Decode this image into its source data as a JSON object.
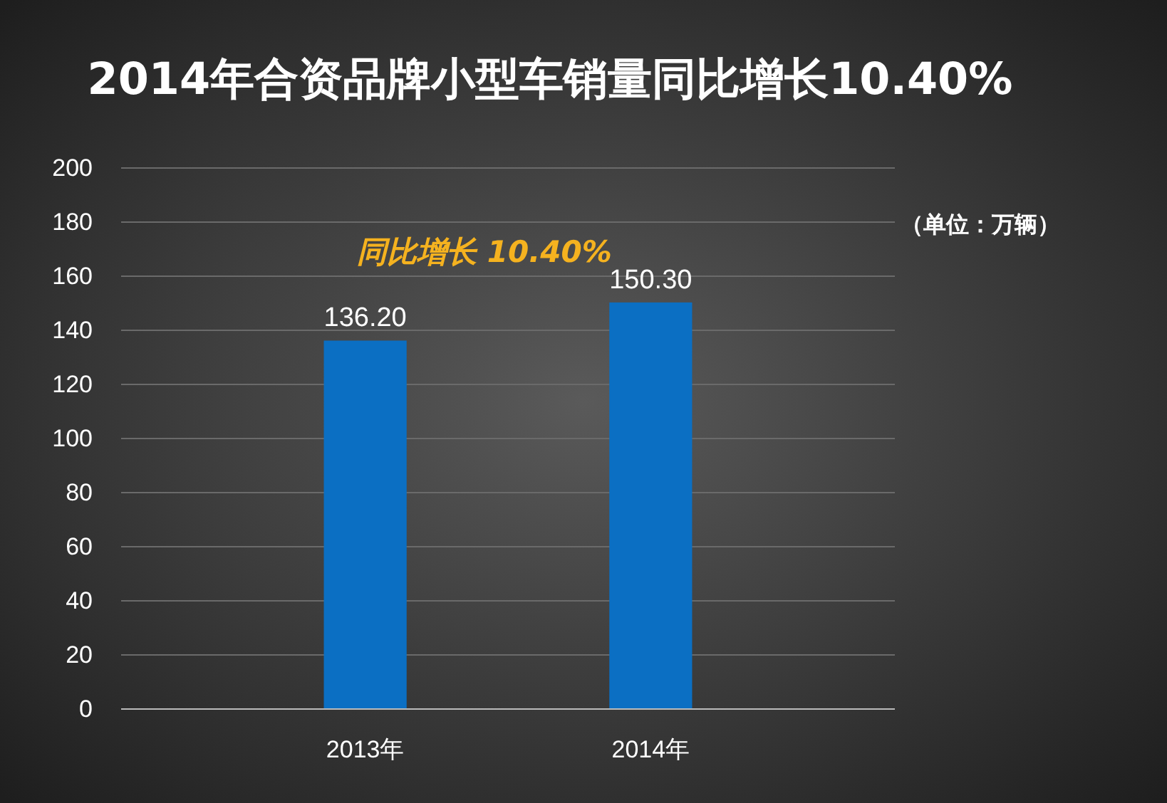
{
  "chart_data": {
    "type": "bar",
    "title": "2014年合资品牌小型车销量同比增长10.40%",
    "categories": [
      "2013年",
      "2014年"
    ],
    "values": [
      136.2,
      150.3
    ],
    "color": "#0b6fc3",
    "value_labels": [
      "136.20",
      "150.30"
    ],
    "ylim": [
      0,
      200
    ],
    "yticks": [
      0,
      20,
      40,
      60,
      80,
      100,
      120,
      140,
      160,
      180,
      200
    ],
    "grid": "y",
    "annotations": [
      "同比增长 10.40%",
      "（单位：万辆）"
    ]
  }
}
